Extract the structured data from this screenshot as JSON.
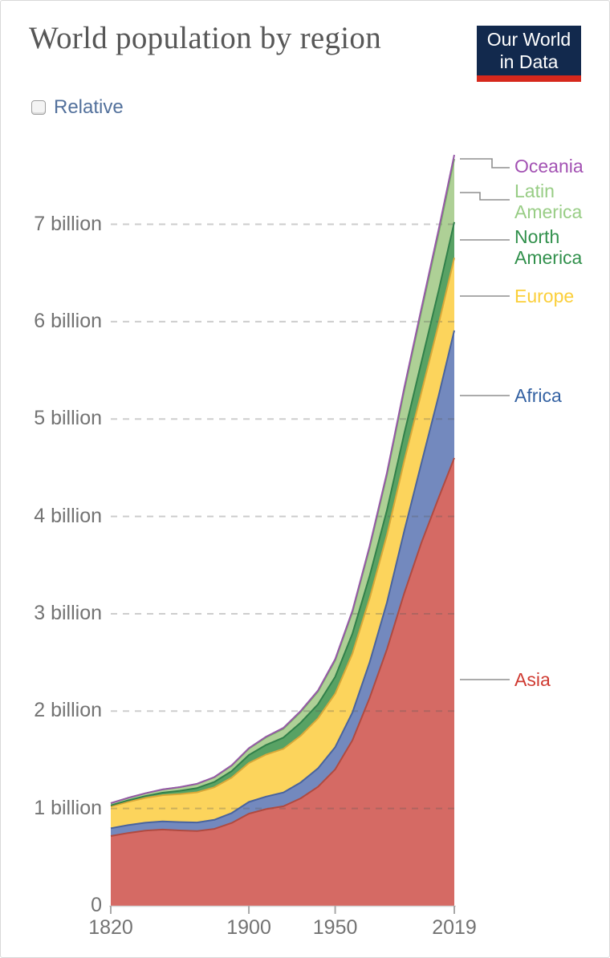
{
  "header": {
    "title": "World population by region",
    "logo": {
      "line1": "Our World",
      "line2": "in Data",
      "bg_color": "#12294d",
      "bar_color": "#d6281c",
      "text_color": "#ffffff"
    }
  },
  "controls": {
    "relative_label": "Relative",
    "relative_checked": false
  },
  "axis": {
    "y_tick_labels": [
      {
        "label": "0",
        "value": 0
      },
      {
        "label": "1 billion",
        "value": 1
      },
      {
        "label": "2 billion",
        "value": 2
      },
      {
        "label": "3 billion",
        "value": 3
      },
      {
        "label": "4 billion",
        "value": 4
      },
      {
        "label": "5 billion",
        "value": 5
      },
      {
        "label": "6 billion",
        "value": 6
      },
      {
        "label": "7 billion",
        "value": 7
      }
    ],
    "x_tick_labels": [
      {
        "label": "1820",
        "year": 1820
      },
      {
        "label": "1900",
        "year": 1900
      },
      {
        "label": "1950",
        "year": 1950
      },
      {
        "label": "2019",
        "year": 2019
      }
    ],
    "label_color": "#737373",
    "gridline_style": "dashed"
  },
  "chart_data": {
    "type": "area",
    "stacked": true,
    "title": "World population by region",
    "x": [
      1820,
      1830,
      1840,
      1850,
      1860,
      1870,
      1880,
      1890,
      1900,
      1910,
      1920,
      1930,
      1940,
      1950,
      1960,
      1970,
      1980,
      1990,
      2000,
      2010,
      2019
    ],
    "xlim": [
      1820,
      2019
    ],
    "ylim": [
      0,
      7.8
    ],
    "y_unit": "billion",
    "grid": "horizontal-dashed",
    "legend_position": "right",
    "series": [
      {
        "id": "asia",
        "label": "Asia",
        "fill": "#d56a64",
        "stroke": "#b04a40",
        "label_color": "#cf3a31",
        "values": [
          0.717,
          0.748,
          0.772,
          0.784,
          0.775,
          0.768,
          0.79,
          0.851,
          0.947,
          0.994,
          1.023,
          1.104,
          1.222,
          1.402,
          1.701,
          2.138,
          2.635,
          3.21,
          3.731,
          4.194,
          4.601
        ]
      },
      {
        "id": "africa",
        "label": "Africa",
        "fill": "#7389be",
        "stroke": "#48639f",
        "label_color": "#3361a2",
        "values": [
          0.08,
          0.081,
          0.082,
          0.083,
          0.085,
          0.088,
          0.093,
          0.102,
          0.12,
          0.128,
          0.141,
          0.163,
          0.19,
          0.228,
          0.285,
          0.365,
          0.481,
          0.638,
          0.818,
          1.049,
          1.308
        ]
      },
      {
        "id": "europe",
        "label": "Europe",
        "fill": "#fcd45c",
        "stroke": "#d9a838",
        "label_color": "#fbcf3a",
        "values": [
          0.224,
          0.239,
          0.254,
          0.269,
          0.288,
          0.31,
          0.334,
          0.363,
          0.4,
          0.432,
          0.449,
          0.48,
          0.513,
          0.549,
          0.605,
          0.657,
          0.694,
          0.721,
          0.726,
          0.736,
          0.747
        ]
      },
      {
        "id": "north_america",
        "label": "North America",
        "fill": "#58a264",
        "stroke": "#31804a",
        "label_color": "#31904c",
        "values": [
          0.011,
          0.015,
          0.019,
          0.026,
          0.034,
          0.044,
          0.055,
          0.068,
          0.082,
          0.099,
          0.115,
          0.134,
          0.144,
          0.173,
          0.205,
          0.231,
          0.254,
          0.28,
          0.312,
          0.343,
          0.367
        ]
      },
      {
        "id": "latin_america",
        "label": "Latin America",
        "fill": "#aed096",
        "stroke": "#77ac66",
        "label_color": "#98cd85",
        "values": [
          0.022,
          0.025,
          0.028,
          0.033,
          0.037,
          0.042,
          0.048,
          0.055,
          0.065,
          0.078,
          0.091,
          0.111,
          0.131,
          0.169,
          0.22,
          0.287,
          0.362,
          0.443,
          0.522,
          0.591,
          0.648
        ]
      },
      {
        "id": "oceania",
        "label": "Oceania",
        "fill": "#cfb3db",
        "stroke": "#9659a7",
        "label_color": "#a352b3",
        "values": [
          0.001,
          0.001,
          0.001,
          0.001,
          0.001,
          0.002,
          0.003,
          0.005,
          0.006,
          0.007,
          0.009,
          0.01,
          0.011,
          0.013,
          0.016,
          0.02,
          0.023,
          0.027,
          0.031,
          0.037,
          0.042
        ]
      }
    ]
  }
}
